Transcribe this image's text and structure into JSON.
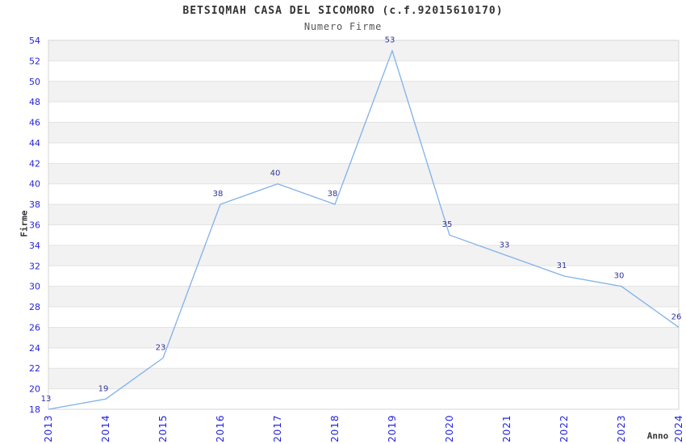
{
  "chart_data": {
    "type": "line",
    "title": "BETSIQMAH CASA DEL SICOMORO (c.f.92015610170)",
    "subtitle": "Numero Firme",
    "xlabel": "Anno",
    "ylabel": "Firme",
    "x": [
      2013,
      2014,
      2015,
      2016,
      2017,
      2018,
      2019,
      2020,
      2021,
      2022,
      2023,
      2024
    ],
    "values": [
      13,
      19,
      23,
      38,
      40,
      38,
      53,
      35,
      33,
      31,
      30,
      26
    ],
    "ylim": [
      18,
      54
    ],
    "ytick_step": 2,
    "grid": "horizontal-bands",
    "legend": "none",
    "colors": {
      "line": "#7FB2E8",
      "tick_label": "#2323DC",
      "data_label": "#333399",
      "band": "#F2F2F2",
      "grid_line": "#E3E3E3",
      "plot_border": "#D6D6D6",
      "title": "#333333",
      "subtitle": "#555555",
      "axis_title": "#333333",
      "background": "#FFFFFF"
    }
  }
}
